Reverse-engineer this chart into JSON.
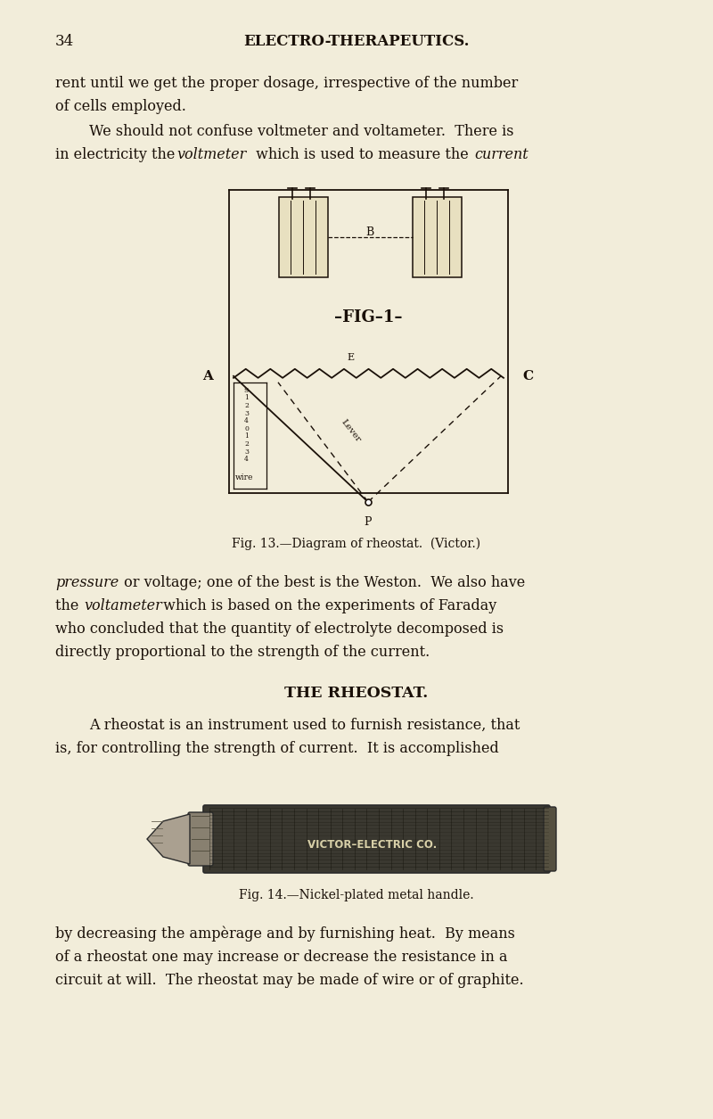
{
  "bg_color": "#f2edda",
  "page_width": 8.0,
  "page_height": 12.55,
  "dpi": 100,
  "page_number": "34",
  "header": "ELECTRO-THERAPEUTICS.",
  "text_color": "#1a1008",
  "fig13_caption": "Fig. 13.—Diagram of rheostat.  (Victor.)",
  "fig14_caption": "Fig. 14.—Nickel-plated metal handle.",
  "section_header": "THE RHEOSTAT."
}
